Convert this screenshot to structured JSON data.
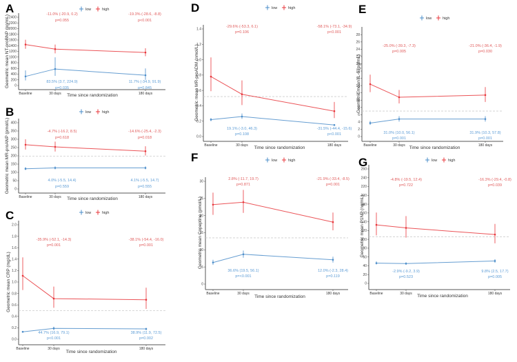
{
  "colors": {
    "low": "#4a8cc9",
    "high": "#e8353a",
    "axis": "#555555",
    "ref": "#cccccc",
    "ann_low": "#5b9bd5",
    "ann_high": "#e05a5a"
  },
  "legend": {
    "low": "low",
    "high": "high"
  },
  "chart_data": [
    {
      "panel": "A",
      "type": "line",
      "categories": [
        "Baseline",
        "30 days",
        "180 days"
      ],
      "xlabel": "Time since randomization",
      "ylabel": "Geometric mean NT-proBNP (pg/mL)",
      "yticks": [
        0,
        200,
        400,
        600,
        800,
        1000,
        1200,
        1400,
        1600,
        1800,
        2000,
        2200,
        2400
      ],
      "ylim": [
        0,
        2400
      ],
      "reference_line": null,
      "series": [
        {
          "name": "low",
          "values": [
            320,
            580,
            360
          ],
          "lower": [
            180,
            340,
            200
          ],
          "upper": [
            530,
            990,
            600
          ]
        },
        {
          "name": "high",
          "values": [
            1440,
            1280,
            1160
          ],
          "lower": [
            1290,
            1130,
            1030
          ],
          "upper": [
            1610,
            1440,
            1310
          ]
        }
      ],
      "annotations_high": [
        {
          "effect": "-11.0% (-20.9, 0.2)",
          "p": "p=0.055"
        },
        {
          "effect": "-19.3% (-28.6, -8.8)",
          "p": "p<0.001"
        }
      ],
      "annotations_low": [
        {
          "effect": "83.5% (3.7, 224.9)",
          "p": "p=0.035"
        },
        {
          "effect": "11.7% (-34.9, 91.9)",
          "p": "p=0.845"
        }
      ]
    },
    {
      "panel": "B",
      "type": "line",
      "categories": [
        "Baseline",
        "30 days",
        "180 days"
      ],
      "xlabel": "Time since randomization",
      "ylabel": "Geometric mean MR-proANP (pmol/L)",
      "yticks": [
        0,
        50,
        100,
        150,
        200,
        250,
        300,
        350,
        400
      ],
      "ylim": [
        0,
        400
      ],
      "reference_line": 198,
      "series": [
        {
          "name": "low",
          "values": [
            122,
            127,
            127
          ],
          "lower": [
            114,
            119,
            119
          ],
          "upper": [
            131,
            136,
            136
          ]
        },
        {
          "name": "high",
          "values": [
            267,
            254,
            228
          ],
          "lower": [
            238,
            226,
            202
          ],
          "upper": [
            300,
            286,
            258
          ]
        }
      ],
      "annotations_high": [
        {
          "effect": "-4.7% (-16.2, 8.5)",
          "p": "p=0.618"
        },
        {
          "effect": "-14.6% (-25.4, -2.3)",
          "p": "p=0.018"
        }
      ],
      "annotations_low": [
        {
          "effect": "4.0% (-5.5, 14.4)",
          "p": "p=0.559"
        },
        {
          "effect": "4.1% (-5.5, 14.7)",
          "p": "p=0.555"
        }
      ]
    },
    {
      "panel": "C",
      "type": "line",
      "categories": [
        "Baseline",
        "30 days",
        "180 days"
      ],
      "xlabel": "Time since randomization",
      "ylabel": "Geometric mean CRP (mg/dL)",
      "yticks": [
        0.0,
        0.2,
        0.4,
        0.6,
        0.8,
        1.0,
        1.2,
        1.4,
        1.6,
        1.8,
        2.0
      ],
      "ylim": [
        0,
        2.0
      ],
      "reference_line": 0.5,
      "series": [
        {
          "name": "low",
          "values": [
            0.13,
            0.19,
            0.18
          ],
          "lower": [
            0.12,
            0.16,
            0.16
          ],
          "upper": [
            0.14,
            0.22,
            0.2
          ]
        },
        {
          "name": "high",
          "values": [
            1.11,
            0.71,
            0.69
          ],
          "lower": [
            0.86,
            0.55,
            0.53
          ],
          "upper": [
            1.43,
            0.92,
            0.9
          ]
        }
      ],
      "annotations_high": [
        {
          "effect": "-35.9% (-52.1, -14.3)",
          "p": "p=0.001"
        },
        {
          "effect": "-38.1% (-54.4, -16.0)",
          "p": "p=0.001"
        }
      ],
      "annotations_low": [
        {
          "effect": "44.7% (16.9, 79.1)",
          "p": "p<0.001"
        },
        {
          "effect": "38.9% (11.9, 72.5)",
          "p": "p=0.002"
        }
      ]
    },
    {
      "panel": "D",
      "type": "line",
      "categories": [
        "Baseline",
        "30 days",
        "180 days"
      ],
      "xlabel": "Time since randomization",
      "ylabel": "Geometric mean MR-proADM (nmol/L)",
      "yticks": [
        0.0,
        0.2,
        0.4,
        0.6,
        0.8,
        1.0,
        1.2,
        1.4
      ],
      "ylim": [
        0,
        1.55
      ],
      "reference_line": 0.52,
      "series": [
        {
          "name": "low",
          "values": [
            0.22,
            0.26,
            0.15
          ],
          "lower": [
            0.2,
            0.23,
            0.14
          ],
          "upper": [
            0.24,
            0.3,
            0.16
          ]
        },
        {
          "name": "high",
          "values": [
            0.78,
            0.55,
            0.33
          ],
          "lower": [
            0.59,
            0.41,
            0.24
          ],
          "upper": [
            1.03,
            0.73,
            0.45
          ]
        }
      ],
      "annotations_high": [
        {
          "effect": "-29.6% (-53.3, 6.1)",
          "p": "p=0.106"
        },
        {
          "effect": "-58.1% (-73.1, -34.9)",
          "p": "p<0.001"
        }
      ],
      "annotations_low": [
        {
          "effect": "19.1% (-3.0, 46.3)",
          "p": "p=0.108"
        },
        {
          "effect": "-31.5% (-44.4, -15.6)",
          "p": "p<0.001"
        }
      ]
    },
    {
      "panel": "E",
      "type": "line",
      "categories": [
        "Baseline",
        "30 days",
        "180 days"
      ],
      "xlabel": "Time since randomization",
      "ylabel": "Geometric mean IL-6 (pg/mL)",
      "yticks": [
        0,
        2,
        4,
        6,
        8,
        10,
        12,
        14,
        16,
        18,
        20,
        22,
        24,
        26,
        28
      ],
      "ylim": [
        0,
        29
      ],
      "reference_line": 7,
      "series": [
        {
          "name": "low",
          "values": [
            3.7,
            4.8,
            4.8
          ],
          "lower": [
            3.2,
            4.1,
            4.1
          ],
          "upper": [
            4.3,
            5.6,
            5.6
          ]
        },
        {
          "name": "high",
          "values": [
            14.4,
            10.8,
            11.4
          ],
          "lower": [
            12.2,
            9.1,
            9.5
          ],
          "upper": [
            17.0,
            12.8,
            13.6
          ]
        }
      ],
      "annotations_high": [
        {
          "effect": "-25.0% (-39.3, -7.3)",
          "p": "p=0.005"
        },
        {
          "effect": "-21.0% (-36.4, -1.9)",
          "p": "p=0.030"
        }
      ],
      "annotations_low": [
        {
          "effect": "31.0% (10.0, 56.1)",
          "p": "p=0.001"
        },
        {
          "effect": "31.9% (10.3, 57.8)",
          "p": "p=0.001"
        }
      ]
    },
    {
      "panel": "F",
      "type": "line",
      "categories": [
        "Baseline",
        "30 days",
        "180 days"
      ],
      "xlabel": "Time since randomization",
      "ylabel": "Geometric mean Copeptine (pmol/L)",
      "yticks": [
        0,
        5,
        10,
        15,
        20,
        25,
        30
      ],
      "ylim": [
        0,
        33
      ],
      "reference_line": 13.5,
      "series": [
        {
          "name": "low",
          "values": [
            6.3,
            8.7,
            7.1
          ],
          "lower": [
            5.6,
            7.7,
            6.3
          ],
          "upper": [
            7.1,
            9.8,
            8.0
          ]
        },
        {
          "name": "high",
          "values": [
            23.2,
            23.9,
            18.1
          ],
          "lower": [
            20.2,
            20.8,
            15.7
          ],
          "upper": [
            26.7,
            27.5,
            20.9
          ]
        }
      ],
      "annotations_high": [
        {
          "effect": "2.8% (-11.7, 19.7)",
          "p": "p=0.871"
        },
        {
          "effect": "-21.9% (-33.4, -8.5)",
          "p": "p=0.001"
        }
      ],
      "annotations_low": [
        {
          "effect": "36.6% (19.5, 56.1)",
          "p": "p=<0.001"
        },
        {
          "effect": "12.0% (-2.3, 28.4)",
          "p": "p=0.119"
        }
      ]
    },
    {
      "panel": "G",
      "type": "line",
      "categories": [
        "Baseline",
        "30 days",
        "180 days"
      ],
      "xlabel": "Time since randomization",
      "ylabel": "Geometric mean P1NP (ng/mL)",
      "yticks": [
        0,
        20,
        40,
        60,
        80,
        100,
        120,
        140,
        160,
        180,
        200,
        220,
        240,
        260
      ],
      "ylim": [
        0,
        260
      ],
      "reference_line": 106,
      "series": [
        {
          "name": "low",
          "values": [
            46,
            45,
            51
          ],
          "lower": [
            43,
            42,
            47
          ],
          "upper": [
            50,
            48,
            55
          ]
        },
        {
          "name": "high",
          "values": [
            133,
            126,
            111
          ],
          "lower": [
            109,
            104,
            91
          ],
          "upper": [
            161,
            153,
            135
          ]
        }
      ],
      "annotations_high": [
        {
          "effect": "-4.8% (-19.5, 12.4)",
          "p": "p=0.722"
        },
        {
          "effect": "-16.3% (-29.4, -0.8)",
          "p": "p=0.039"
        }
      ],
      "annotations_low": [
        {
          "effect": "-2.9% (-9.2, 3.9)",
          "p": "p=0.523"
        },
        {
          "effect": "9.8% (2.5, 17.7)",
          "p": "p=0.005"
        }
      ]
    }
  ]
}
